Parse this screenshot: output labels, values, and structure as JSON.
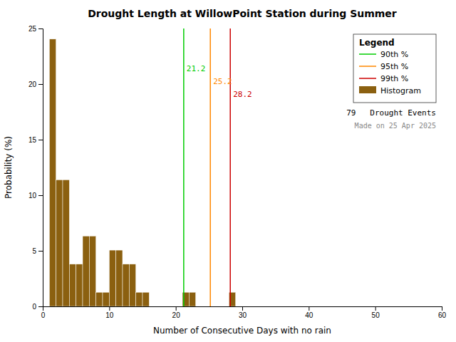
{
  "chart_data": {
    "type": "histogram",
    "title": "Drought Length at WillowPoint Station during Summer",
    "x_label": "Number of Consecutive Days with no rain",
    "y_label": "Probability (%)",
    "bins": [
      1,
      2,
      3,
      4,
      5,
      6,
      7,
      8,
      9,
      10,
      11,
      12,
      13,
      14,
      15,
      16,
      17,
      18,
      19,
      20,
      21,
      22,
      23,
      24,
      25,
      26,
      27,
      28,
      29,
      30,
      31
    ],
    "series": [
      {
        "name": "Histogram",
        "color": "#8B6010",
        "values": [
          24.05,
          11.39,
          11.39,
          3.8,
          3.8,
          6.33,
          6.33,
          1.27,
          1.27,
          5.06,
          5.06,
          3.8,
          3.8,
          1.27,
          1.27,
          0.0,
          0.0,
          0.0,
          0.0,
          0.0,
          1.27,
          1.27,
          0.0,
          0.0,
          0.0,
          0.0,
          0.0,
          1.27,
          0.0,
          0.0
        ]
      }
    ],
    "reference_lines": [
      {
        "name": "90th %",
        "value": 21.2,
        "color": "#00CC00"
      },
      {
        "name": "95th %",
        "value": 25.2,
        "color": "#FF8800"
      },
      {
        "name": "99th %",
        "value": 28.2,
        "color": "#CC0000"
      }
    ],
    "legend_title": "Legend",
    "annotations": [
      "79   Drought Events",
      "Made on 25 Apr 2025"
    ],
    "xlim": [
      0,
      60
    ],
    "ylim": [
      0,
      25
    ],
    "xticks": [
      0,
      10,
      20,
      30,
      40,
      50,
      60
    ],
    "yticks": [
      0,
      5,
      10,
      15,
      20,
      25
    ],
    "grid": false,
    "legend": "upper right"
  }
}
